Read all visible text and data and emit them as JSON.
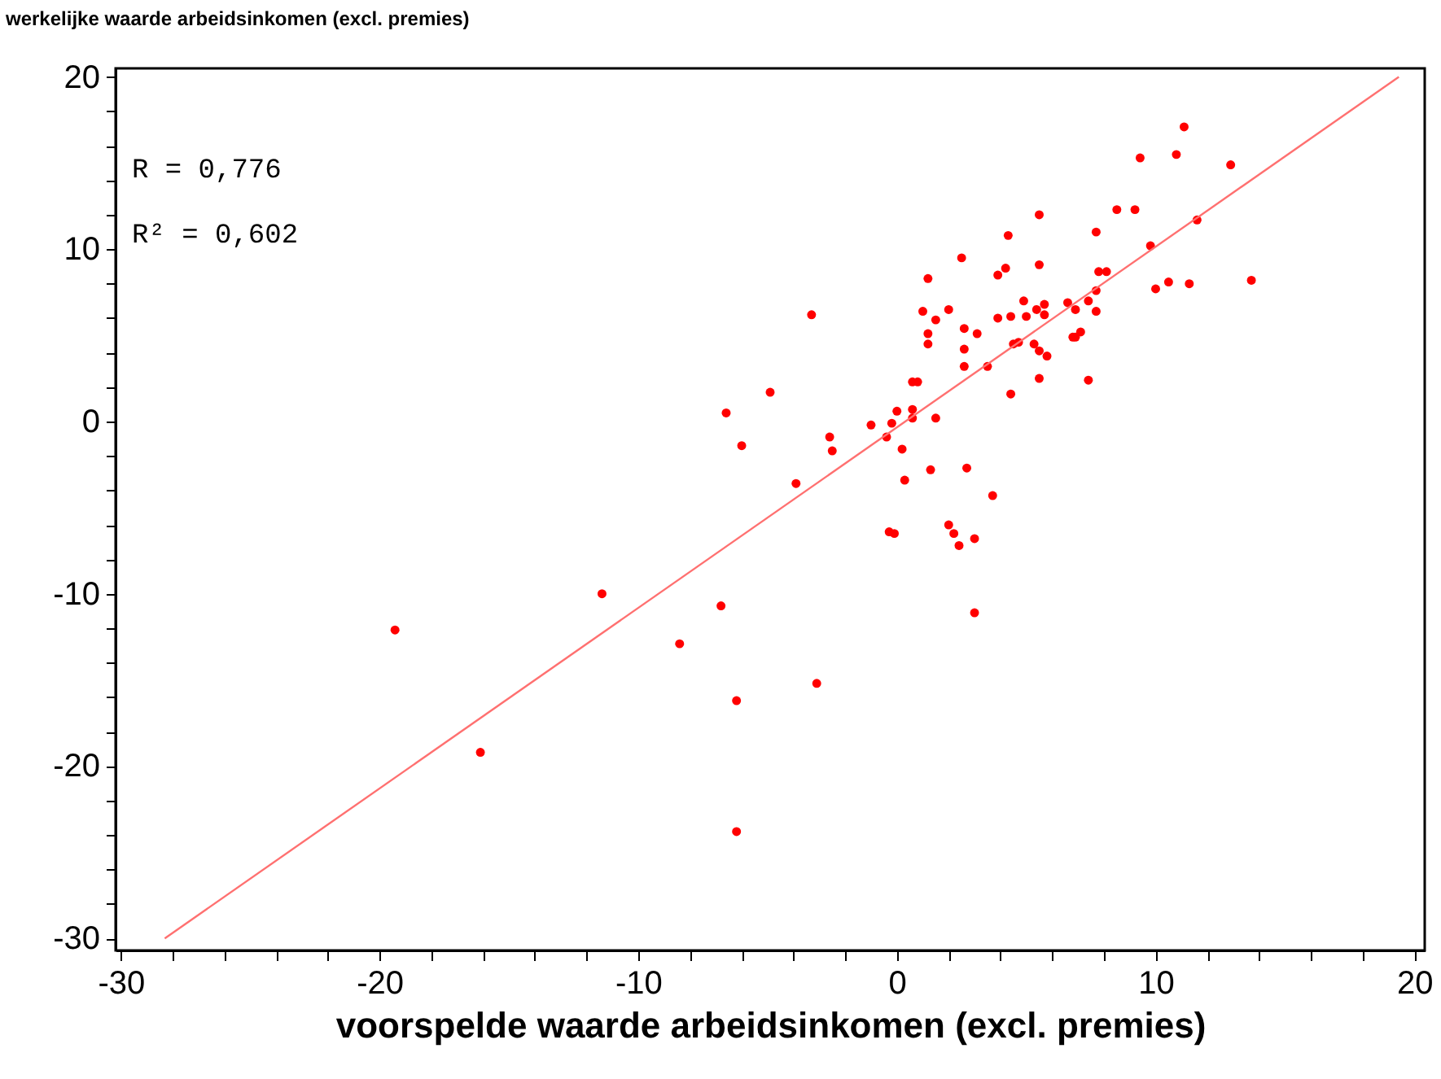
{
  "chart_data": {
    "type": "scatter",
    "ylabel": "werkelijke waarde arbeidsinkomen (excl. premies)",
    "xlabel": "voorspelde waarde arbeidsinkomen (excl. premies)",
    "annotations": [
      "R  = 0,776",
      "R² = 0,602"
    ],
    "xlim": [
      -30.2,
      20.4
    ],
    "ylim": [
      -30.7,
      20.5
    ],
    "xticks": [
      -30,
      {
        "value": -28,
        "label": null
      },
      {
        "value": -26,
        "label": null
      },
      {
        "value": -24,
        "label": null
      },
      {
        "value": -22,
        "label": null
      },
      -20,
      {
        "value": -18,
        "label": null
      },
      {
        "value": -16,
        "label": null
      },
      {
        "value": -14,
        "label": null
      },
      {
        "value": -12,
        "label": null
      },
      -10,
      {
        "value": -8,
        "label": null
      },
      {
        "value": -6,
        "label": null
      },
      {
        "value": -4,
        "label": null
      },
      {
        "value": -2,
        "label": null
      },
      0,
      {
        "value": 2,
        "label": null
      },
      {
        "value": 4,
        "label": null
      },
      {
        "value": 6,
        "label": null
      },
      {
        "value": 8,
        "label": null
      },
      10,
      {
        "value": 12,
        "label": null
      },
      {
        "value": 14,
        "label": null
      },
      {
        "value": 16,
        "label": null
      },
      {
        "value": 18,
        "label": null
      },
      20
    ],
    "yticks": [
      -30,
      {
        "value": -28,
        "label": null
      },
      {
        "value": -26,
        "label": null
      },
      {
        "value": -24,
        "label": null
      },
      {
        "value": -22,
        "label": null
      },
      -20,
      {
        "value": -18,
        "label": null
      },
      {
        "value": -16,
        "label": null
      },
      {
        "value": -14,
        "label": null
      },
      {
        "value": -12,
        "label": null
      },
      -10,
      {
        "value": -8,
        "label": null
      },
      {
        "value": -6,
        "label": null
      },
      {
        "value": -4,
        "label": null
      },
      {
        "value": -2,
        "label": null
      },
      0,
      {
        "value": 2,
        "label": null
      },
      {
        "value": 4,
        "label": null
      },
      {
        "value": 6,
        "label": null
      },
      {
        "value": 8,
        "label": null
      },
      10,
      {
        "value": 12,
        "label": null
      },
      {
        "value": 14,
        "label": null
      },
      {
        "value": 16,
        "label": null
      },
      {
        "value": 18,
        "label": null
      },
      20
    ],
    "marker": "circle",
    "series": [
      {
        "color": "#ff0000",
        "x": [
          11.1,
          10.8,
          9.4,
          12.9,
          5.5,
          8.5,
          9.2,
          4.3,
          7.7,
          11.6,
          2.5,
          9.8,
          3.9,
          4.2,
          5.5,
          1.2,
          7.8,
          8.1,
          10.0,
          10.5,
          11.3,
          13.7,
          7.7,
          -3.3,
          1.0,
          2.0,
          1.5,
          4.9,
          5.4,
          5.7,
          5.7,
          5.0,
          6.6,
          6.9,
          7.4,
          7.7,
          3.9,
          4.4,
          1.2,
          1.2,
          2.6,
          3.1,
          2.6,
          2.6,
          3.5,
          4.5,
          4.7,
          5.3,
          5.5,
          5.8,
          6.8,
          7.1,
          6.9,
          5.5,
          7.4,
          4.4,
          0.6,
          0.8,
          -4.9,
          -6.6,
          -6.0,
          -2.6,
          -2.5,
          -1.0,
          -0.4,
          -0.2,
          0.0,
          0.6,
          0.6,
          1.5,
          0.2,
          0.3,
          1.3,
          2.7,
          3.7,
          -3.9,
          -0.3,
          -0.1,
          2.0,
          2.2,
          2.4,
          3.0,
          3.0,
          -6.8,
          -3.1,
          -6.2,
          -11.4,
          -19.4,
          -8.4,
          -16.1,
          -6.2
        ],
        "values": [
          17.1,
          15.5,
          15.3,
          14.9,
          12.0,
          12.3,
          12.3,
          10.8,
          11.0,
          11.7,
          9.5,
          10.2,
          8.5,
          8.9,
          9.1,
          8.3,
          8.7,
          8.7,
          7.7,
          8.1,
          8.0,
          8.2,
          7.6,
          6.2,
          6.4,
          6.5,
          5.9,
          7.0,
          6.5,
          6.8,
          6.2,
          6.1,
          6.9,
          6.5,
          7.0,
          6.4,
          6.0,
          6.1,
          5.1,
          4.5,
          5.4,
          5.1,
          4.2,
          3.2,
          3.2,
          4.5,
          4.6,
          4.5,
          4.1,
          3.8,
          4.9,
          5.2,
          4.9,
          2.5,
          2.4,
          1.6,
          2.3,
          2.3,
          1.7,
          0.5,
          -1.4,
          -0.9,
          -1.7,
          -0.2,
          -0.9,
          -0.1,
          0.6,
          0.7,
          0.2,
          0.2,
          -1.6,
          -3.4,
          -2.8,
          -2.7,
          -4.3,
          -3.6,
          -6.4,
          -6.5,
          -6.0,
          -6.5,
          -7.2,
          -6.8,
          -11.1,
          -10.7,
          -15.2,
          -16.2,
          -10.0,
          -12.1,
          -12.9,
          -19.2,
          -23.8
        ]
      },
      {
        "type": "line",
        "marker": "none",
        "color": "#ff7070",
        "x": [
          -28.3,
          19.4
        ],
        "values": [
          -30,
          20
        ]
      }
    ]
  }
}
